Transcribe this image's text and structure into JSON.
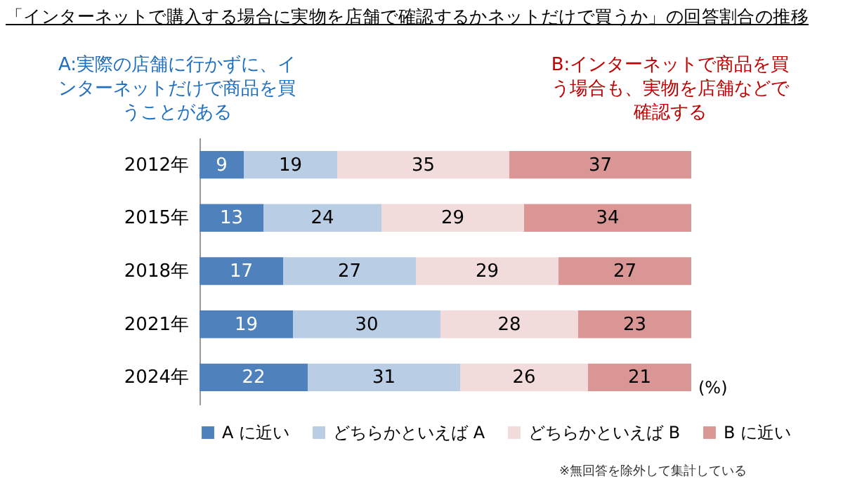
{
  "chart_data": {
    "type": "bar",
    "orientation": "horizontal",
    "stacked": true,
    "title": "「インターネットで購入する場合に実物を店舗で確認するかネットだけで買うか」の回答割合の推移",
    "categories": [
      "2012年",
      "2015年",
      "2018年",
      "2021年",
      "2024年"
    ],
    "series": [
      {
        "name": "A に近い",
        "color": "#4f81bd",
        "values": [
          9,
          13,
          17,
          19,
          22
        ]
      },
      {
        "name": "どちらかといえば A",
        "color": "#b9cde5",
        "values": [
          19,
          24,
          27,
          30,
          31
        ]
      },
      {
        "name": "どちらかといえば B",
        "color": "#f2dcdb",
        "values": [
          35,
          29,
          29,
          28,
          26
        ]
      },
      {
        "name": "B に近い",
        "color": "#d99694",
        "values": [
          37,
          34,
          27,
          23,
          21
        ]
      }
    ],
    "xlim": [
      0,
      100
    ],
    "tick_labels": "y",
    "data_labels": true,
    "legend": "bottom",
    "annotations": [
      "A:実際の店舗に行かずに、インターネットだけで商品を買うことがある",
      "B:インターネットで商品を買う場合も、実物を店舗などで確認する",
      "(%)",
      "※無回答を除外して集計している"
    ]
  }
}
